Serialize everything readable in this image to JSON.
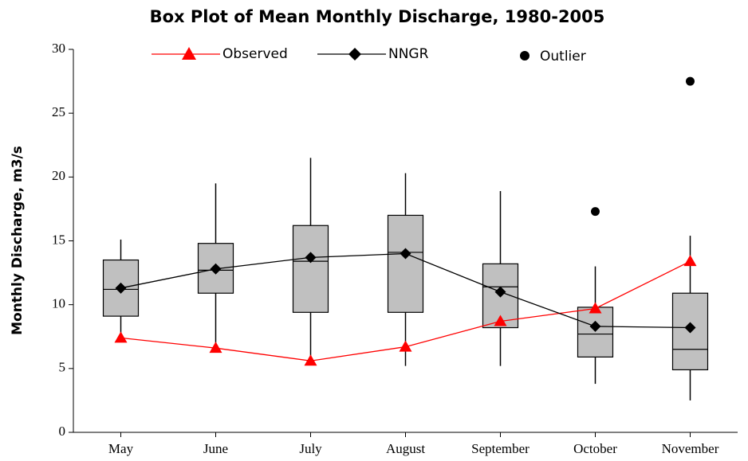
{
  "chart_data": {
    "type": "box",
    "title": "Box Plot of Mean Monthly Discharge, 1980-2005",
    "y_label": "Monthly Discharge, m3/s",
    "categories": [
      "May",
      "June",
      "July",
      "August",
      "September",
      "October",
      "November"
    ],
    "ylim": [
      0,
      30
    ],
    "yticks": [
      0,
      5,
      10,
      15,
      20,
      25,
      30
    ],
    "box_color": "#c0c0c0",
    "boxes": {
      "whisker_low": [
        7.6,
        6.6,
        5.5,
        5.2,
        5.2,
        3.8,
        2.5
      ],
      "q1": [
        9.1,
        10.9,
        9.4,
        9.4,
        8.2,
        5.9,
        4.9
      ],
      "median": [
        11.2,
        12.7,
        13.4,
        14.1,
        11.4,
        7.7,
        6.5
      ],
      "q3": [
        13.5,
        14.8,
        16.2,
        17.0,
        13.2,
        9.8,
        10.9
      ],
      "whisker_high": [
        15.1,
        19.5,
        21.5,
        20.3,
        18.9,
        13.0,
        15.4
      ]
    },
    "series": [
      {
        "name": "Observed",
        "color": "#ff0000",
        "marker": "triangle",
        "values": [
          7.4,
          6.6,
          5.6,
          6.7,
          8.7,
          9.7,
          13.4
        ]
      },
      {
        "name": "NNGR",
        "color": "#000000",
        "marker": "diamond",
        "values": [
          11.3,
          12.8,
          13.7,
          14.0,
          11.0,
          8.3,
          8.2
        ]
      }
    ],
    "outliers": {
      "name": "Outlier",
      "color": "#000000",
      "values": [
        null,
        null,
        null,
        null,
        null,
        17.3,
        27.5
      ]
    }
  }
}
